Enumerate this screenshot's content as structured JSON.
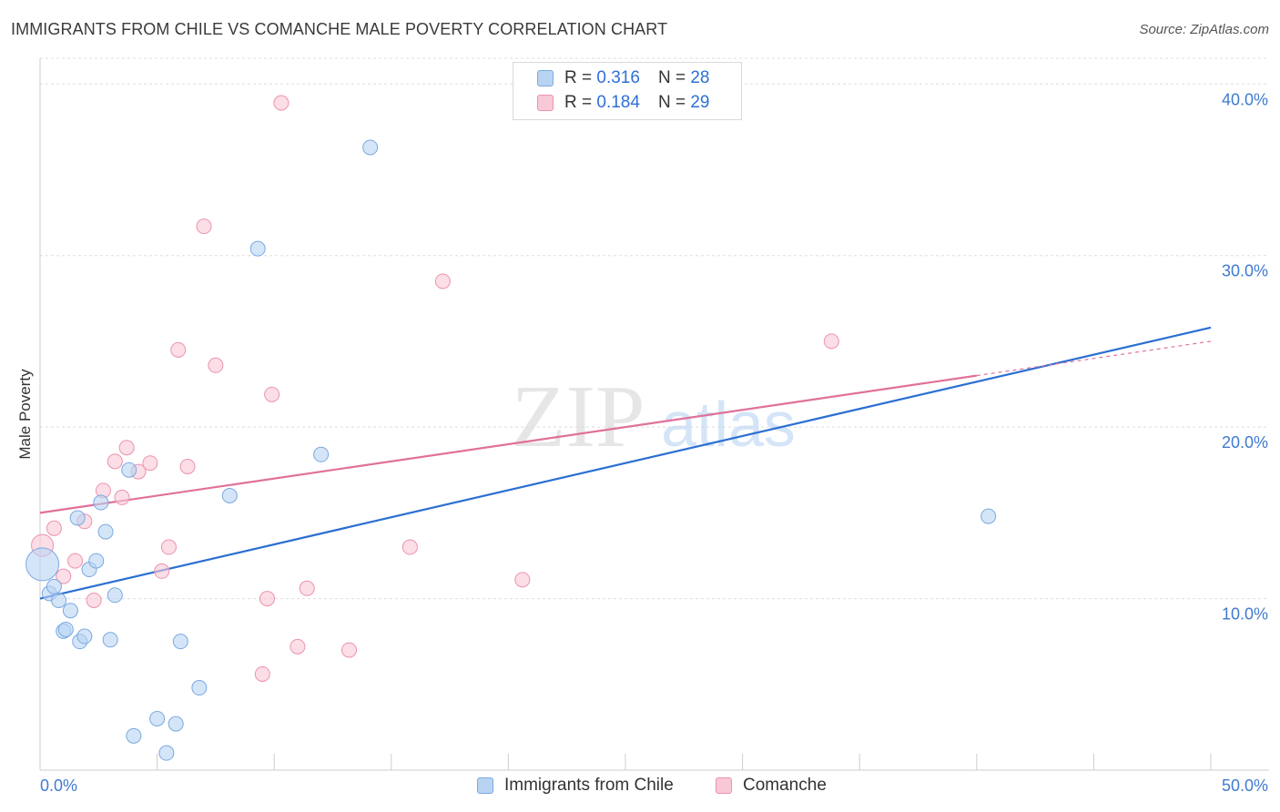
{
  "title": "IMMIGRANTS FROM CHILE VS COMANCHE MALE POVERTY CORRELATION CHART",
  "source": "Source: ZipAtlas.com",
  "watermark": {
    "zip": "ZIP",
    "atlas": "atlas"
  },
  "legend_top": {
    "rows": [
      {
        "r_label": "R =",
        "r_value": "0.316",
        "n_label": "N =",
        "n_value": "28"
      },
      {
        "r_label": "R =",
        "r_value": "0.184",
        "n_label": "N =",
        "n_value": "29"
      }
    ]
  },
  "legend_bottom": {
    "series1": "Immigrants from Chile",
    "series2": "Comanche"
  },
  "colors": {
    "blue_fill": "#b9d4f3",
    "blue_stroke": "#7aa9e0",
    "blue_line": "#2b6fd1",
    "pink_fill": "#f9c8d6",
    "pink_stroke": "#ec93ad",
    "pink_line": "#e0709a",
    "tick_label": "#3f7ad0"
  },
  "chart_data": {
    "type": "scatter",
    "title": "IMMIGRANTS FROM CHILE VS COMANCHE MALE POVERTY CORRELATION CHART",
    "xlabel": "",
    "ylabel": "Male Poverty",
    "xlim": [
      0,
      50
    ],
    "ylim": [
      0,
      41.5
    ],
    "x_tick_labels": [
      "0.0%",
      "50.0%"
    ],
    "y_ticks": [
      10,
      20,
      30,
      40
    ],
    "y_tick_labels": [
      "10.0%",
      "20.0%",
      "30.0%",
      "40.0%"
    ],
    "grid": true,
    "legend_position": "top-center",
    "series": [
      {
        "name": "Immigrants from Chile",
        "color": "blue",
        "points": [
          [
            0.1,
            12.0
          ],
          [
            0.4,
            10.3
          ],
          [
            0.6,
            10.7
          ],
          [
            0.8,
            9.9
          ],
          [
            1.0,
            8.1
          ],
          [
            1.1,
            8.2
          ],
          [
            1.3,
            9.3
          ],
          [
            1.6,
            14.7
          ],
          [
            1.7,
            7.5
          ],
          [
            1.9,
            7.8
          ],
          [
            2.1,
            11.7
          ],
          [
            2.4,
            12.2
          ],
          [
            2.6,
            15.6
          ],
          [
            2.8,
            13.9
          ],
          [
            3.0,
            7.6
          ],
          [
            3.2,
            10.2
          ],
          [
            3.8,
            17.5
          ],
          [
            4.0,
            2.0
          ],
          [
            5.0,
            3.0
          ],
          [
            5.4,
            1.0
          ],
          [
            5.8,
            2.7
          ],
          [
            6.0,
            7.5
          ],
          [
            6.8,
            4.8
          ],
          [
            8.1,
            16.0
          ],
          [
            9.3,
            30.4
          ],
          [
            12.0,
            18.4
          ],
          [
            14.1,
            36.3
          ],
          [
            40.5,
            14.8
          ]
        ],
        "trend": {
          "x": [
            0,
            50
          ],
          "y": [
            10.0,
            25.8
          ]
        }
      },
      {
        "name": "Comanche",
        "color": "pink",
        "points": [
          [
            0.1,
            13.1
          ],
          [
            0.6,
            14.1
          ],
          [
            1.0,
            11.3
          ],
          [
            1.5,
            12.2
          ],
          [
            1.9,
            14.5
          ],
          [
            2.3,
            9.9
          ],
          [
            2.7,
            16.3
          ],
          [
            3.2,
            18.0
          ],
          [
            3.5,
            15.9
          ],
          [
            3.7,
            18.8
          ],
          [
            4.2,
            17.4
          ],
          [
            4.7,
            17.9
          ],
          [
            5.2,
            11.6
          ],
          [
            5.5,
            13.0
          ],
          [
            5.9,
            24.5
          ],
          [
            6.3,
            17.7
          ],
          [
            7.0,
            31.7
          ],
          [
            7.5,
            23.6
          ],
          [
            9.5,
            5.6
          ],
          [
            9.7,
            10.0
          ],
          [
            9.9,
            21.9
          ],
          [
            10.3,
            38.9
          ],
          [
            11.0,
            7.2
          ],
          [
            11.4,
            10.6
          ],
          [
            13.2,
            7.0
          ],
          [
            15.8,
            13.0
          ],
          [
            17.2,
            28.5
          ],
          [
            20.6,
            11.1
          ],
          [
            33.8,
            25.0
          ]
        ],
        "trend": {
          "x": [
            0,
            40
          ],
          "y": [
            15.0,
            23.0
          ]
        },
        "trend_dashed": {
          "x": [
            40,
            50
          ],
          "y": [
            23.0,
            25.0
          ]
        }
      }
    ]
  }
}
